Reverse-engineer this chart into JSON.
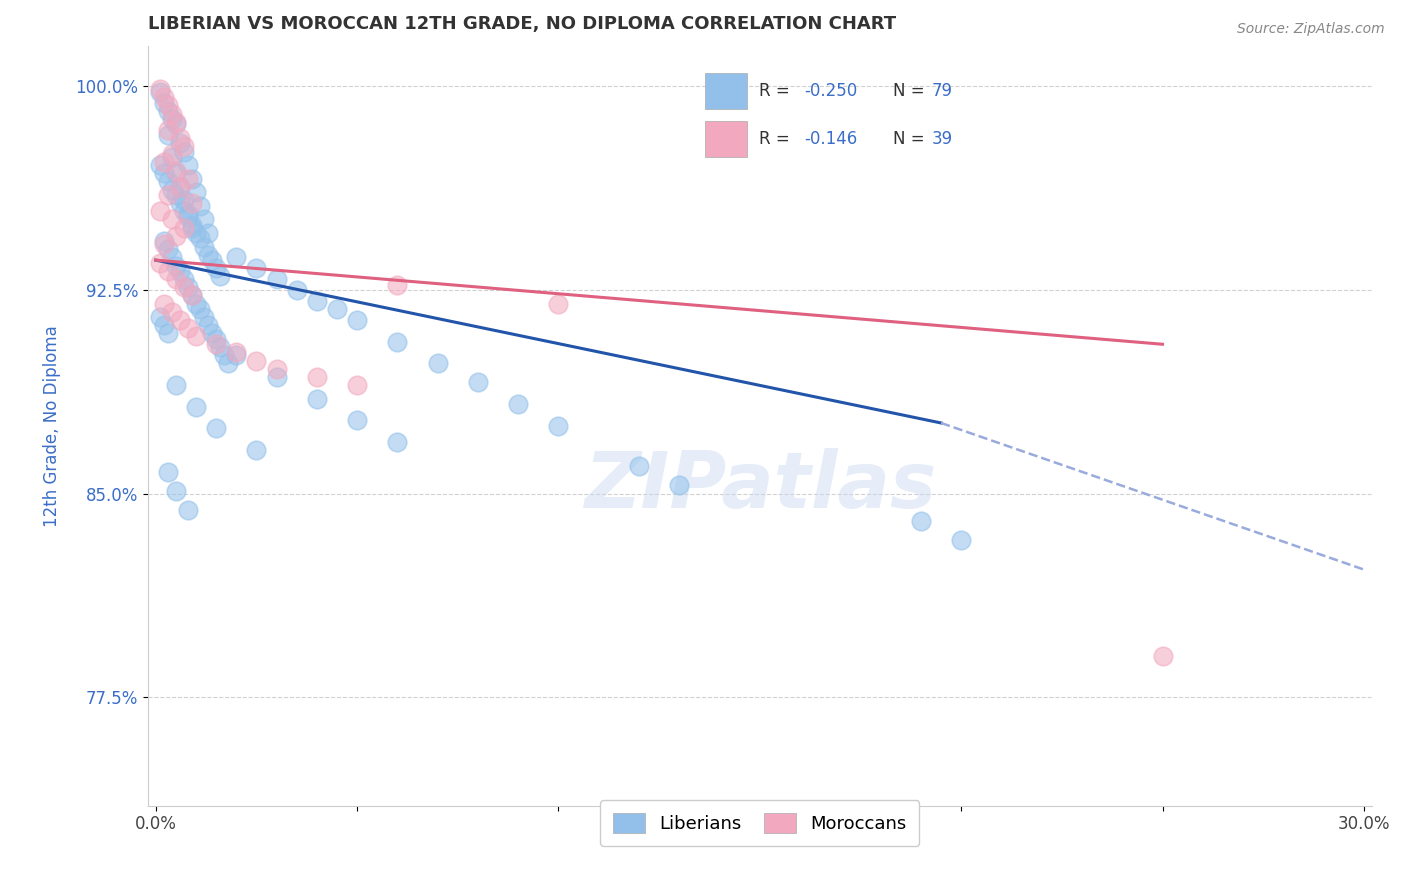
{
  "title": "LIBERIAN VS MOROCCAN 12TH GRADE, NO DIPLOMA CORRELATION CHART",
  "xlabel": "",
  "ylabel": "12th Grade, No Diploma",
  "source_text": "Source: ZipAtlas.com",
  "xlim": [
    -0.002,
    0.302
  ],
  "ylim": [
    0.735,
    1.015
  ],
  "xticks": [
    0.0,
    0.05,
    0.1,
    0.15,
    0.2,
    0.25,
    0.3
  ],
  "xticklabels": [
    "0.0%",
    "",
    "",
    "",
    "",
    "",
    "30.0%"
  ],
  "yticks": [
    0.775,
    0.85,
    0.925,
    1.0
  ],
  "yticklabels": [
    "77.5%",
    "85.0%",
    "92.5%",
    "100.0%"
  ],
  "blue_color": "#92C0EA",
  "pink_color": "#F2A8BE",
  "blue_line_color": "#2255AA",
  "pink_line_color": "#E06080",
  "dashed_line_color": "#99AADD",
  "watermark": "ZIPatlas",
  "blue_line": {
    "x0": 0.0,
    "y0": 0.936,
    "x1": 0.195,
    "y1": 0.876
  },
  "blue_dash_line": {
    "x0": 0.195,
    "y0": 0.876,
    "x1": 0.3,
    "y1": 0.822
  },
  "pink_line": {
    "x0": 0.0,
    "y0": 0.936,
    "x1": 0.25,
    "y1": 0.905
  },
  "liberian_points": [
    [
      0.001,
      0.998
    ],
    [
      0.002,
      0.994
    ],
    [
      0.003,
      0.991
    ],
    [
      0.004,
      0.988
    ],
    [
      0.005,
      0.986
    ],
    [
      0.003,
      0.982
    ],
    [
      0.006,
      0.979
    ],
    [
      0.007,
      0.976
    ],
    [
      0.004,
      0.974
    ],
    [
      0.008,
      0.971
    ],
    [
      0.005,
      0.968
    ],
    [
      0.009,
      0.966
    ],
    [
      0.006,
      0.963
    ],
    [
      0.01,
      0.961
    ],
    [
      0.007,
      0.958
    ],
    [
      0.011,
      0.956
    ],
    [
      0.008,
      0.953
    ],
    [
      0.012,
      0.951
    ],
    [
      0.009,
      0.948
    ],
    [
      0.013,
      0.946
    ],
    [
      0.001,
      0.971
    ],
    [
      0.002,
      0.968
    ],
    [
      0.003,
      0.965
    ],
    [
      0.004,
      0.962
    ],
    [
      0.005,
      0.96
    ],
    [
      0.006,
      0.957
    ],
    [
      0.007,
      0.954
    ],
    [
      0.008,
      0.952
    ],
    [
      0.009,
      0.949
    ],
    [
      0.01,
      0.946
    ],
    [
      0.011,
      0.944
    ],
    [
      0.012,
      0.941
    ],
    [
      0.013,
      0.938
    ],
    [
      0.014,
      0.936
    ],
    [
      0.015,
      0.933
    ],
    [
      0.016,
      0.93
    ],
    [
      0.002,
      0.943
    ],
    [
      0.003,
      0.94
    ],
    [
      0.004,
      0.937
    ],
    [
      0.005,
      0.934
    ],
    [
      0.006,
      0.932
    ],
    [
      0.007,
      0.929
    ],
    [
      0.008,
      0.926
    ],
    [
      0.009,
      0.923
    ],
    [
      0.01,
      0.92
    ],
    [
      0.011,
      0.918
    ],
    [
      0.012,
      0.915
    ],
    [
      0.013,
      0.912
    ],
    [
      0.014,
      0.909
    ],
    [
      0.015,
      0.907
    ],
    [
      0.016,
      0.904
    ],
    [
      0.017,
      0.901
    ],
    [
      0.018,
      0.898
    ],
    [
      0.001,
      0.915
    ],
    [
      0.002,
      0.912
    ],
    [
      0.003,
      0.909
    ],
    [
      0.02,
      0.937
    ],
    [
      0.025,
      0.933
    ],
    [
      0.03,
      0.929
    ],
    [
      0.035,
      0.925
    ],
    [
      0.04,
      0.921
    ],
    [
      0.045,
      0.918
    ],
    [
      0.05,
      0.914
    ],
    [
      0.06,
      0.906
    ],
    [
      0.07,
      0.898
    ],
    [
      0.08,
      0.891
    ],
    [
      0.09,
      0.883
    ],
    [
      0.1,
      0.875
    ],
    [
      0.02,
      0.901
    ],
    [
      0.03,
      0.893
    ],
    [
      0.04,
      0.885
    ],
    [
      0.05,
      0.877
    ],
    [
      0.06,
      0.869
    ],
    [
      0.005,
      0.89
    ],
    [
      0.01,
      0.882
    ],
    [
      0.015,
      0.874
    ],
    [
      0.025,
      0.866
    ],
    [
      0.003,
      0.858
    ],
    [
      0.005,
      0.851
    ],
    [
      0.008,
      0.844
    ],
    [
      0.12,
      0.86
    ],
    [
      0.13,
      0.853
    ],
    [
      0.19,
      0.84
    ],
    [
      0.2,
      0.833
    ]
  ],
  "moroccan_points": [
    [
      0.001,
      0.999
    ],
    [
      0.002,
      0.996
    ],
    [
      0.003,
      0.993
    ],
    [
      0.004,
      0.99
    ],
    [
      0.005,
      0.987
    ],
    [
      0.003,
      0.984
    ],
    [
      0.006,
      0.981
    ],
    [
      0.007,
      0.978
    ],
    [
      0.004,
      0.975
    ],
    [
      0.002,
      0.972
    ],
    [
      0.005,
      0.969
    ],
    [
      0.008,
      0.966
    ],
    [
      0.006,
      0.963
    ],
    [
      0.003,
      0.96
    ],
    [
      0.009,
      0.957
    ],
    [
      0.001,
      0.954
    ],
    [
      0.004,
      0.951
    ],
    [
      0.007,
      0.948
    ],
    [
      0.005,
      0.945
    ],
    [
      0.002,
      0.942
    ],
    [
      0.001,
      0.935
    ],
    [
      0.003,
      0.932
    ],
    [
      0.005,
      0.929
    ],
    [
      0.007,
      0.926
    ],
    [
      0.009,
      0.923
    ],
    [
      0.002,
      0.92
    ],
    [
      0.004,
      0.917
    ],
    [
      0.006,
      0.914
    ],
    [
      0.008,
      0.911
    ],
    [
      0.01,
      0.908
    ],
    [
      0.015,
      0.905
    ],
    [
      0.02,
      0.902
    ],
    [
      0.025,
      0.899
    ],
    [
      0.03,
      0.896
    ],
    [
      0.04,
      0.893
    ],
    [
      0.05,
      0.89
    ],
    [
      0.06,
      0.927
    ],
    [
      0.1,
      0.92
    ],
    [
      0.25,
      0.79
    ]
  ]
}
